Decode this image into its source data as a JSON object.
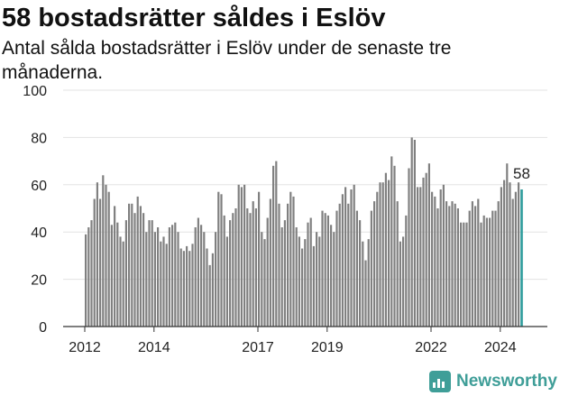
{
  "header": {
    "title": "58 bostadsrätter såldes i Eslöv",
    "subtitle": "Antal sålda bostadsrätter i Eslöv under de senaste tre månaderna."
  },
  "brand": {
    "name": "Newsworthy",
    "icon": "newsworthy-logo-icon",
    "color": "#3f9e98"
  },
  "chart_data": {
    "type": "bar",
    "title": "58 bostadsrätter såldes i Eslöv",
    "subtitle": "Antal sålda bostadsrätter i Eslöv under de senaste tre månaderna.",
    "x_tick_labels": [
      "2012",
      "2014",
      "2017",
      "2019",
      "2022",
      "2024"
    ],
    "y_tick_labels": [
      "0",
      "20",
      "40",
      "60",
      "80",
      "100"
    ],
    "ylim": [
      0,
      100
    ],
    "grid": "horizontal",
    "bar_color": "#808080",
    "highlight_color": "#2e9c9c",
    "highlight_label": "58",
    "values": [
      39,
      42,
      45,
      54,
      61,
      54,
      64,
      60,
      57,
      43,
      51,
      44,
      38,
      36,
      45,
      52,
      52,
      48,
      55,
      51,
      48,
      40,
      45,
      45,
      40,
      42,
      36,
      38,
      35,
      42,
      43,
      44,
      40,
      33,
      32,
      34,
      32,
      35,
      42,
      46,
      43,
      40,
      33,
      26,
      31,
      40,
      57,
      56,
      47,
      38,
      45,
      48,
      50,
      60,
      59,
      60,
      50,
      48,
      53,
      50,
      57,
      40,
      37,
      46,
      54,
      68,
      70,
      52,
      42,
      45,
      52,
      57,
      55,
      42,
      38,
      33,
      37,
      44,
      46,
      34,
      40,
      38,
      49,
      48,
      47,
      43,
      40,
      49,
      52,
      56,
      59,
      52,
      58,
      60,
      49,
      45,
      36,
      28,
      37,
      49,
      53,
      57,
      61,
      61,
      65,
      62,
      72,
      68,
      53,
      36,
      38,
      47,
      67,
      80,
      79,
      59,
      59,
      63,
      65,
      69,
      57,
      55,
      50,
      58,
      60,
      53,
      51,
      53,
      52,
      50,
      44,
      44,
      44,
      49,
      53,
      51,
      54,
      44,
      47,
      46,
      46,
      49,
      49,
      53,
      59,
      62,
      69,
      61,
      54,
      57,
      61,
      58
    ]
  }
}
